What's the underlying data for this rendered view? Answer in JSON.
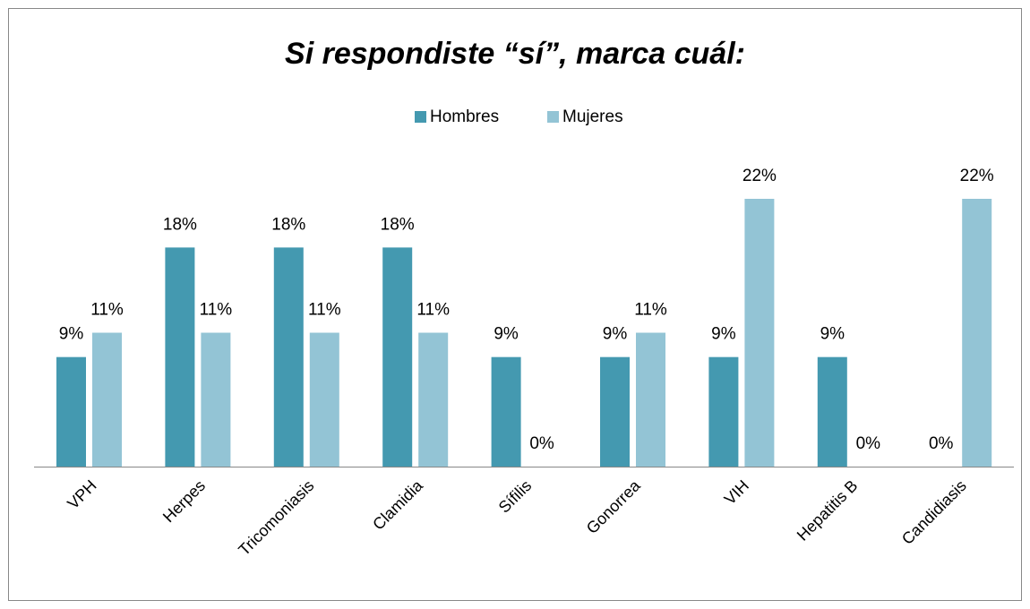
{
  "chart_data": {
    "type": "bar",
    "title": "Si respondiste “sí”, marca cuál:",
    "categories": [
      "VPH",
      "Herpes",
      "Tricomoniasis",
      "Clamidia",
      "Sífilis",
      "Gonorrea",
      "VIH",
      "Hepatitis B",
      "Candidiasis"
    ],
    "series": [
      {
        "name": "Hombres",
        "color": "#4499b0",
        "values": [
          9,
          18,
          18,
          18,
          9,
          9,
          9,
          9,
          0
        ],
        "value_labels": [
          "9%",
          "18%",
          "18%",
          "18%",
          "9%",
          "9%",
          "9%",
          "9%",
          "0%"
        ]
      },
      {
        "name": "Mujeres",
        "color": "#93c4d5",
        "values": [
          11,
          11,
          11,
          11,
          0,
          11,
          22,
          0,
          22
        ],
        "value_labels": [
          "11%",
          "11%",
          "11%",
          "11%",
          "0%",
          "11%",
          "22%",
          "0%",
          "22%"
        ]
      }
    ],
    "legend": "top"
  }
}
